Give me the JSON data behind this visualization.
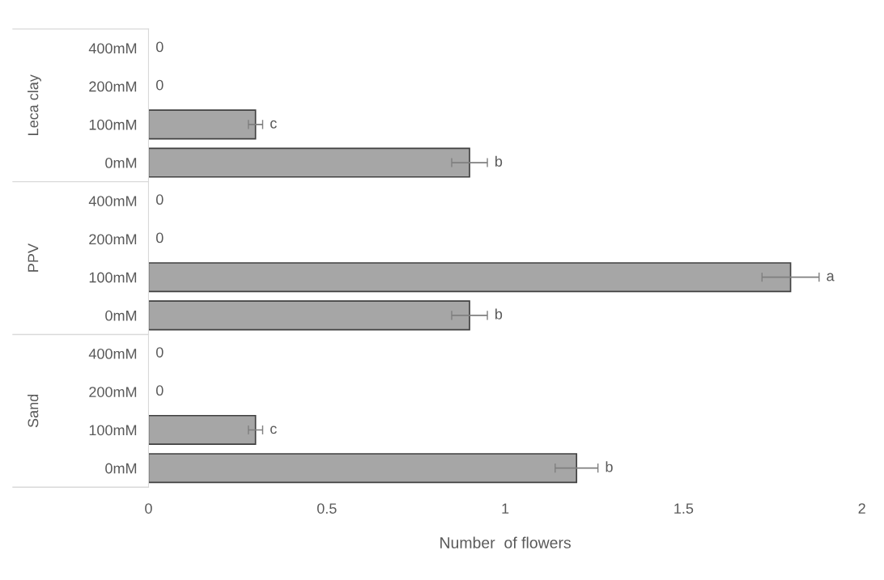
{
  "chart_data": {
    "type": "bar",
    "orientation": "horizontal",
    "xlabel": "Number  of flowers",
    "categories": [
      "400mM",
      "200mM",
      "100mM",
      "0mM",
      "400mM",
      "200mM",
      "100mM",
      "0mM",
      "400mM",
      "200mM",
      "100mM",
      "0mM"
    ],
    "values": [
      0,
      0,
      0.3,
      0.9,
      0,
      0,
      1.8,
      0.9,
      0,
      0,
      0.3,
      1.2
    ],
    "errors": [
      null,
      null,
      0.02,
      0.05,
      null,
      null,
      0.08,
      0.05,
      null,
      null,
      0.02,
      0.06
    ],
    "value_labels": [
      "0",
      "0",
      "c",
      "b",
      "0",
      "0",
      "a",
      "b",
      "0",
      "0",
      "c",
      "b"
    ],
    "color": "#a6a6a6",
    "annotations": [
      "Leca clay",
      "PPV",
      "Sand"
    ],
    "xlim": [
      0,
      2
    ],
    "xticks": [
      0,
      0.5,
      1,
      1.5,
      2
    ],
    "grid": false
  }
}
